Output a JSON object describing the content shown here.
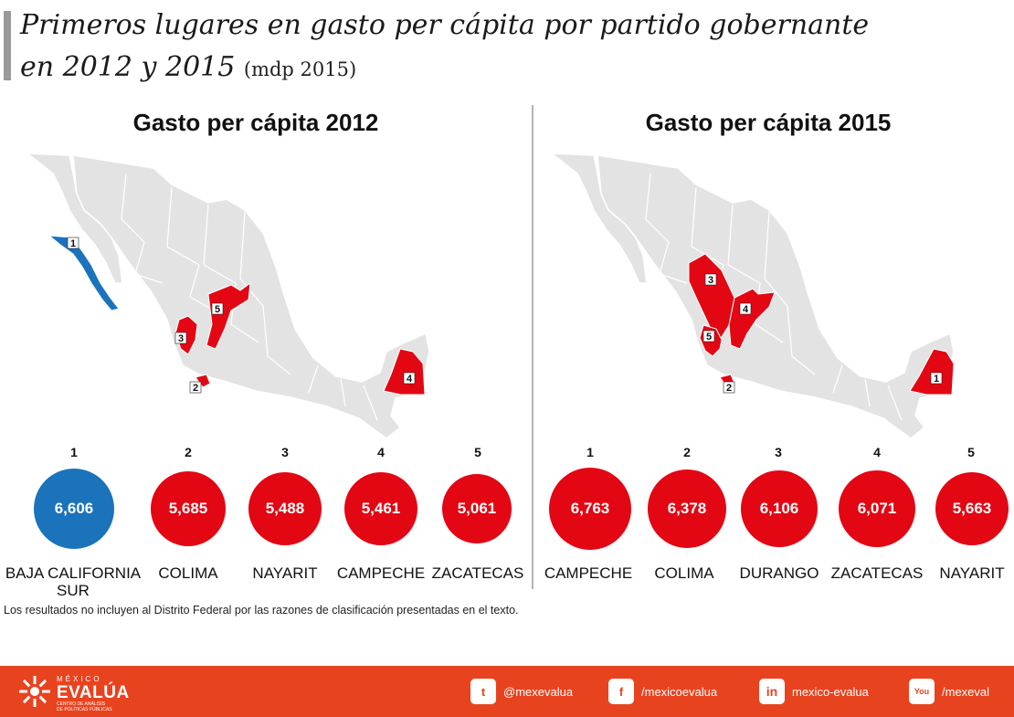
{
  "header": {
    "title_line1": "Primeros lugares en gasto per cápita por partido gobernante",
    "title_line2": "en 2012 y 2015",
    "title_unit": "(mdp 2015)"
  },
  "chart_data": [
    {
      "type": "bar",
      "title": "Gasto per cápita 2012",
      "unit": "mdp 2015",
      "ranks": [
        "1",
        "2",
        "3",
        "4",
        "5"
      ],
      "categories": [
        "BAJA CALIFORNIA SUR",
        "COLIMA",
        "NAYARIT",
        "CAMPECHE",
        "ZACATECAS"
      ],
      "values": [
        6606,
        5685,
        5488,
        5461,
        5061
      ],
      "value_labels": [
        "6,606",
        "5,685",
        "5,488",
        "5,461",
        "5,061"
      ],
      "colors": [
        "#1a73bb",
        "#e30613",
        "#e30613",
        "#e30613",
        "#e30613"
      ],
      "map_labels": [
        "1",
        "2",
        "3",
        "4",
        "5"
      ]
    },
    {
      "type": "bar",
      "title": "Gasto per cápita 2015",
      "unit": "mdp 2015",
      "ranks": [
        "1",
        "2",
        "3",
        "4",
        "5"
      ],
      "categories": [
        "CAMPECHE",
        "COLIMA",
        "DURANGO",
        "ZACATECAS",
        "NAYARIT"
      ],
      "values": [
        6763,
        6378,
        6106,
        6071,
        5663
      ],
      "value_labels": [
        "6,763",
        "6,378",
        "6,106",
        "6,071",
        "5,663"
      ],
      "colors": [
        "#e30613",
        "#e30613",
        "#e30613",
        "#e30613",
        "#e30613"
      ],
      "map_labels": [
        "1",
        "2",
        "3",
        "4",
        "5"
      ]
    }
  ],
  "footnote": "Los resultados no incluyen al Distrito Federal por las razones de clasificación presentadas en el texto.",
  "footer": {
    "logo": {
      "top": "MÉXICO",
      "main": "EVALÚA",
      "sub1": "CENTRO DE ANÁLISIS",
      "sub2": "DE POLÍTICAS PÚBLICAS"
    },
    "social": [
      {
        "icon": "twitter-icon",
        "glyph": "t",
        "label": "@mexevalua"
      },
      {
        "icon": "facebook-icon",
        "glyph": "f",
        "label": "/mexicoevalua"
      },
      {
        "icon": "linkedin-icon",
        "glyph": "in",
        "label": "mexico-evalua"
      },
      {
        "icon": "youtube-icon",
        "glyph": "You",
        "label": "/mexeval"
      }
    ],
    "colors": {
      "bar": "#e8431f"
    }
  }
}
